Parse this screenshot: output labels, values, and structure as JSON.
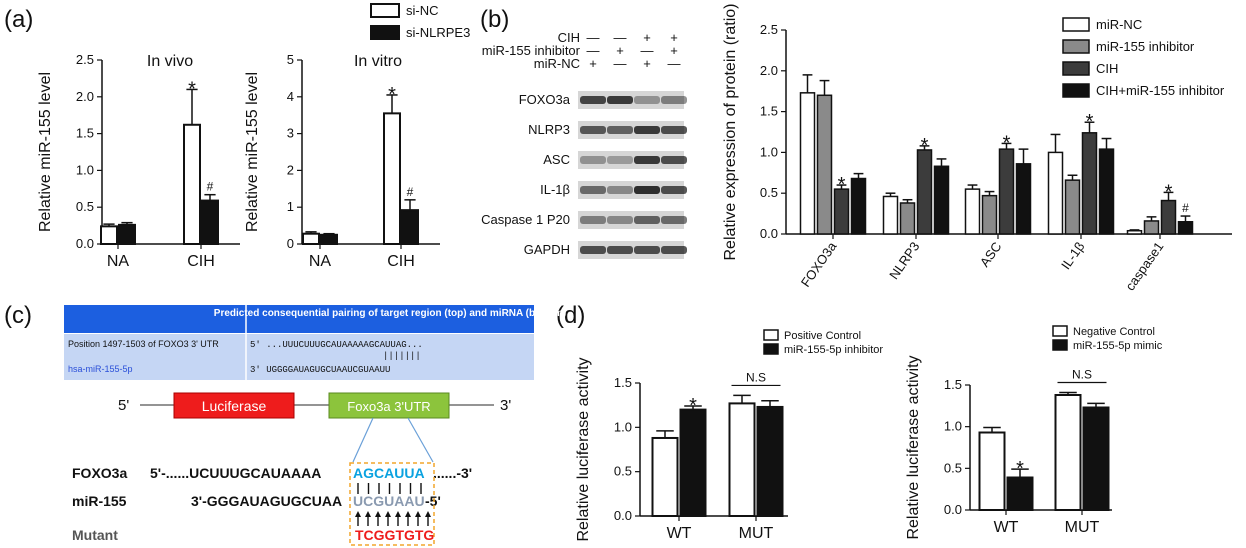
{
  "panel_labels": [
    "(a)",
    "(b)",
    "(c)",
    "(d)"
  ],
  "colors": {
    "white_bar": "#ffffff",
    "black_bar": "#111111",
    "gray_bar": "#8a8a8a",
    "dark_bar": "#3c3c3c",
    "table_header": "#1c5fe0",
    "table_body": "#c5d6f4",
    "luciferase": "#ee1c1c",
    "utr": "#8cc43c",
    "seed_blue": "#0aa2e0",
    "seed_gray": "#8a9ab0",
    "mutant_red": "#ee1c1c",
    "dash_box": "#f2a52b"
  },
  "chart_data": [
    {
      "type": "bar",
      "title": "In vivo",
      "ylabel": "Relative miR-155  level",
      "categories": [
        "NA",
        "CIH"
      ],
      "ylim": [
        0,
        2.5
      ],
      "yticks": [
        "0.0",
        "0.5",
        "1.0",
        "1.5",
        "2.0",
        "2.5"
      ],
      "series": [
        {
          "name": "si-NC",
          "values": [
            0.24,
            1.62
          ],
          "errors": [
            0.03,
            0.48
          ]
        },
        {
          "name": "si-NLRPE3",
          "values": [
            0.26,
            0.59
          ],
          "errors": [
            0.03,
            0.08
          ]
        }
      ],
      "annotations": [
        {
          "category": "CIH",
          "series": 0,
          "text": "*"
        },
        {
          "category": "CIH",
          "series": 1,
          "text": "#"
        }
      ]
    },
    {
      "type": "bar",
      "title": "In vitro",
      "ylabel": "Relative miR-155  level",
      "categories": [
        "NA",
        "CIH"
      ],
      "ylim": [
        0,
        5
      ],
      "yticks": [
        "0",
        "1",
        "2",
        "3",
        "4",
        "5"
      ],
      "series": [
        {
          "name": "si-NC",
          "values": [
            0.28,
            3.55
          ],
          "errors": [
            0.05,
            0.5
          ]
        },
        {
          "name": "si-NLRPE3",
          "values": [
            0.25,
            0.92
          ],
          "errors": [
            0.03,
            0.28
          ]
        }
      ],
      "annotations": [
        {
          "category": "CIH",
          "series": 0,
          "text": "*"
        },
        {
          "category": "CIH",
          "series": 1,
          "text": "#"
        }
      ]
    },
    {
      "type": "bar",
      "ylabel": "Relative  expression of protein (ratio)",
      "categories": [
        "FOXO3a",
        "NLRP3",
        "ASC",
        "IL-1β",
        "caspase1"
      ],
      "ylim": [
        0,
        2.5
      ],
      "yticks": [
        "0.0",
        "0.5",
        "1.0",
        "1.5",
        "2.0",
        "2.5"
      ],
      "series": [
        {
          "name": "miR-NC",
          "values": [
            1.73,
            0.46,
            0.55,
            1.0,
            0.04
          ],
          "errors": [
            0.22,
            0.04,
            0.05,
            0.22,
            0.01
          ]
        },
        {
          "name": "miR-155 inhibitor",
          "values": [
            1.7,
            0.38,
            0.47,
            0.66,
            0.16
          ],
          "errors": [
            0.18,
            0.04,
            0.05,
            0.06,
            0.05
          ]
        },
        {
          "name": "CIH",
          "values": [
            0.55,
            1.03,
            1.04,
            1.24,
            0.41
          ],
          "errors": [
            0.05,
            0.05,
            0.07,
            0.13,
            0.1
          ]
        },
        {
          "name": "CIH+miR-155 inhibitor",
          "values": [
            0.68,
            0.83,
            0.86,
            1.04,
            0.15
          ],
          "errors": [
            0.06,
            0.09,
            0.18,
            0.13,
            0.07
          ]
        }
      ],
      "annotations": [
        {
          "category": "FOXO3a",
          "series": 2,
          "text": "*"
        },
        {
          "category": "NLRP3",
          "series": 2,
          "text": "*"
        },
        {
          "category": "ASC",
          "series": 2,
          "text": "*"
        },
        {
          "category": "IL-1β",
          "series": 2,
          "text": "*"
        },
        {
          "category": "caspase1",
          "series": 2,
          "text": "*"
        },
        {
          "category": "caspase1",
          "series": 3,
          "text": "#"
        }
      ]
    },
    {
      "type": "bar",
      "ylabel": "Relative luciferase activity",
      "categories": [
        "WT",
        "MUT"
      ],
      "ylim": [
        0,
        1.5
      ],
      "yticks": [
        "0.0",
        "0.5",
        "1.0",
        "1.5"
      ],
      "series": [
        {
          "name": "Positive Control",
          "values": [
            0.88,
            1.27
          ],
          "errors": [
            0.08,
            0.09
          ]
        },
        {
          "name": "miR-155-5p inhibitor",
          "values": [
            1.2,
            1.23
          ],
          "errors": [
            0.04,
            0.07
          ]
        }
      ],
      "annotations": [
        {
          "category": "WT",
          "series": 1,
          "text": "*"
        },
        {
          "category": "MUT",
          "bracket": true,
          "text": "N.S"
        }
      ]
    },
    {
      "type": "bar",
      "ylabel": "Relative luciferase activity",
      "categories": [
        "WT",
        "MUT"
      ],
      "ylim": [
        0,
        1.5
      ],
      "yticks": [
        "0.0",
        "0.5",
        "1.0",
        "1.5"
      ],
      "series": [
        {
          "name": "Negative Control",
          "values": [
            0.93,
            1.38
          ],
          "errors": [
            0.06,
            0.03
          ]
        },
        {
          "name": "miR-155-5p mimic",
          "values": [
            0.39,
            1.23
          ],
          "errors": [
            0.1,
            0.05
          ]
        }
      ],
      "annotations": [
        {
          "category": "WT",
          "series": 1,
          "text": "*"
        },
        {
          "category": "MUT",
          "bracket": true,
          "text": "N.S"
        }
      ]
    }
  ],
  "western_blot": {
    "conditions": [
      {
        "label": "CIH",
        "marks": [
          "—",
          "—",
          "+",
          "+"
        ]
      },
      {
        "label": "miR-155 inhibitor",
        "marks": [
          "—",
          "+",
          "—",
          "+"
        ]
      },
      {
        "label": "miR-NC",
        "marks": [
          "+",
          "—",
          "+",
          "—"
        ]
      }
    ],
    "bands": [
      "FOXO3a",
      "NLRP3",
      "ASC",
      "IL-1β",
      "Caspase 1 P20",
      "GAPDH"
    ]
  },
  "target_table": {
    "header": "Predicted consequential pairing of target region (top) and miRNA (bottom)",
    "row1_label": "Position 1497-1503 of FOXO3 3' UTR",
    "row1_seq": "5'  ...UUUCUUUGCAUAAAAAGCAUUAG...",
    "pair_lines": "|||||||",
    "row2_label": "hsa-miR-155-5p",
    "row2_seq": "3'     UGGGGAUAGUGCUAAUCGUAAUU"
  },
  "construct": {
    "five": "5'",
    "three": "3'",
    "luciferase": "Luciferase",
    "utr": "Foxo3a   3'UTR"
  },
  "sequences": {
    "foxo_label": "FOXO3a",
    "foxo_left": "5'-......UCUUUGCAUAAAA",
    "foxo_seed": "AGCAUUA",
    "foxo_right": "......-3'",
    "mir_label": "miR-155",
    "mir_left": "3'-GGGAUAGUGCUAA",
    "mir_seed": "UCGUAAU",
    "mir_right": "-5'",
    "mutant_label": "Mutant",
    "mutant_seq": "TCGGTGTG"
  }
}
